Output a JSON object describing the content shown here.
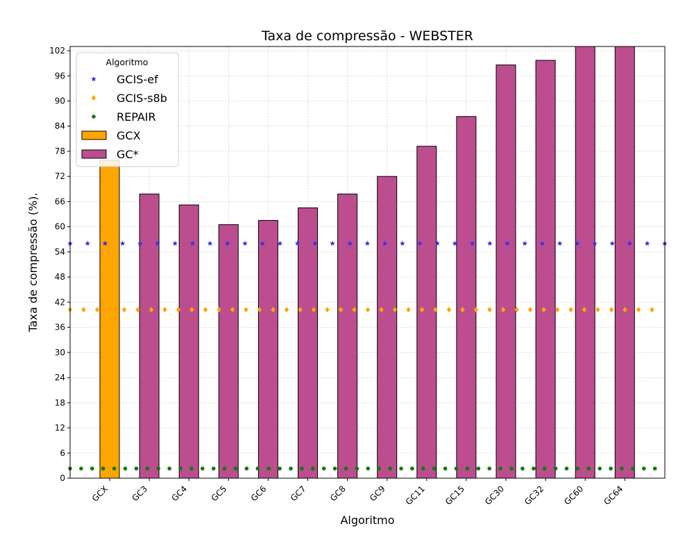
{
  "chart_data": {
    "type": "bar",
    "title": "Taxa de compressão -  WEBSTER",
    "xlabel": "Algoritmo",
    "ylabel": "Taxa de compressão (%).",
    "categories": [
      "GCX",
      "GC3",
      "GC4",
      "GC5",
      "GC6",
      "GC7",
      "GC8",
      "GC9",
      "GC11",
      "GC15",
      "GC30",
      "GC32",
      "GC60",
      "GC64"
    ],
    "ylim": [
      0,
      103
    ],
    "yticks": [
      0,
      6,
      12,
      18,
      24,
      30,
      36,
      42,
      48,
      54,
      60,
      66,
      72,
      78,
      84,
      90,
      96,
      102
    ],
    "grid": true,
    "bar_series": [
      {
        "name": "GCX",
        "color": "#FFA500",
        "categories": [
          "GCX"
        ],
        "values": [
          75.8
        ]
      },
      {
        "name": "GC*",
        "color": "#BC4E8F",
        "categories": [
          "GC3",
          "GC4",
          "GC5",
          "GC6",
          "GC7",
          "GC8",
          "GC9",
          "GC11",
          "GC15",
          "GC30",
          "GC32",
          "GC60",
          "GC64"
        ],
        "values": [
          67.8,
          65.2,
          60.5,
          61.5,
          64.5,
          67.8,
          72.0,
          79.2,
          86.3,
          98.6,
          99.7,
          103,
          103
        ]
      }
    ],
    "reference_lines": [
      {
        "name": "GCIS-ef",
        "value": 56.0,
        "marker": "star",
        "color": "#3333EE"
      },
      {
        "name": "GCIS-s8b",
        "value": 40.2,
        "marker": "diamond",
        "color": "#FFA500"
      },
      {
        "name": "REPAIR",
        "value": 2.3,
        "marker": "circle",
        "color": "#0A7D0A"
      }
    ],
    "legend": {
      "title": "Algoritmo",
      "position": "top-left",
      "entries": [
        "GCIS-ef",
        "GCIS-s8b",
        "REPAIR",
        "GCX",
        "GC*"
      ]
    }
  }
}
